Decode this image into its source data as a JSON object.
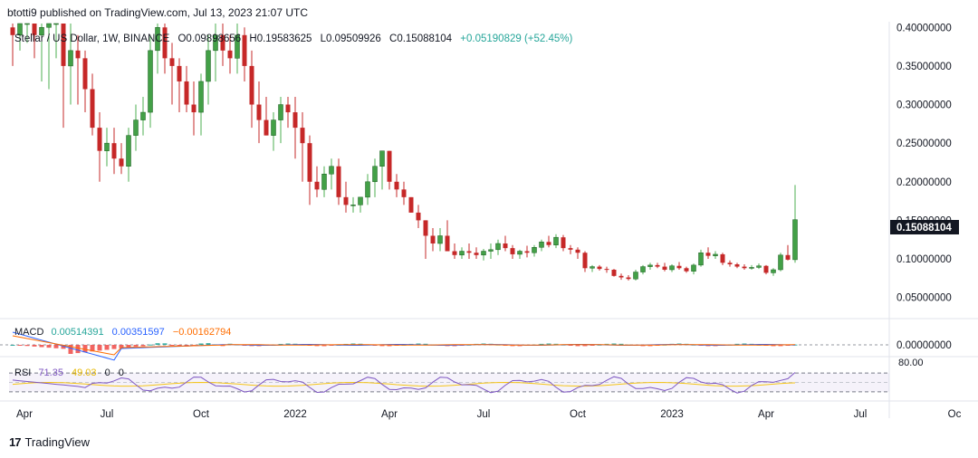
{
  "header": {
    "published": "btotti9 published on TradingView.com, Jul 13, 2023 21:07 UTC"
  },
  "legend": {
    "symbol": "Stellar / US Dollar, 1W, BINANCE",
    "o": "O0.09898656",
    "h": "H0.19583625",
    "l": "L0.09509926",
    "c": "C0.15088104",
    "change": "+0.05190829 (+52.45%)"
  },
  "macd_legend": {
    "label": "MACD",
    "v1": "0.00514391",
    "v2": "0.00351597",
    "v3": "−0.00162794"
  },
  "rsi_legend": {
    "label": "RSI",
    "v1": "71.35",
    "v2": "49.03",
    "v3": "0",
    "v4": "0"
  },
  "price_tag": "0.15088104",
  "footer": {
    "brand": "TradingView"
  },
  "colors": {
    "up": "#26a69a",
    "up_body": "#4caf50",
    "down": "#c62828",
    "macd": "#2962ff",
    "signal": "#ff6d00",
    "rsi": "#7e57c2",
    "rsi_ma": "#f5c518"
  },
  "chart_data": {
    "type": "candlestick",
    "timeframe": "1W",
    "y_axis": {
      "ticks": [
        0.05,
        0.1,
        0.15,
        0.2,
        0.25,
        0.3,
        0.35,
        0.4
      ],
      "tick_labels": [
        "0.05000000",
        "0.10000000",
        "0.15000000",
        "0.20000000",
        "0.25000000",
        "0.30000000",
        "0.35000000",
        "0.40000000"
      ],
      "ylim": [
        0.025,
        0.405
      ]
    },
    "x_axis": {
      "tick_labels": [
        "Apr",
        "Jul",
        "Oct",
        "2022",
        "Apr",
        "Jul",
        "Oct",
        "2023",
        "Apr",
        "Jul",
        "Oc"
      ],
      "tick_weeks": [
        0,
        13,
        26,
        39,
        52,
        65,
        78,
        91,
        104,
        117,
        130
      ]
    },
    "candles": [
      [
        0.4,
        0.42,
        0.35,
        0.39
      ],
      [
        0.39,
        0.44,
        0.37,
        0.42
      ],
      [
        0.42,
        0.46,
        0.38,
        0.44
      ],
      [
        0.44,
        0.46,
        0.36,
        0.39
      ],
      [
        0.39,
        0.42,
        0.33,
        0.4
      ],
      [
        0.4,
        0.42,
        0.32,
        0.41
      ],
      [
        0.41,
        0.44,
        0.36,
        0.42
      ],
      [
        0.42,
        0.45,
        0.27,
        0.35
      ],
      [
        0.35,
        0.42,
        0.3,
        0.37
      ],
      [
        0.37,
        0.39,
        0.3,
        0.36
      ],
      [
        0.36,
        0.37,
        0.29,
        0.32
      ],
      [
        0.32,
        0.34,
        0.26,
        0.27
      ],
      [
        0.27,
        0.29,
        0.2,
        0.24
      ],
      [
        0.24,
        0.27,
        0.22,
        0.25
      ],
      [
        0.25,
        0.27,
        0.21,
        0.23
      ],
      [
        0.23,
        0.25,
        0.21,
        0.22
      ],
      [
        0.22,
        0.27,
        0.2,
        0.26
      ],
      [
        0.26,
        0.3,
        0.24,
        0.28
      ],
      [
        0.28,
        0.31,
        0.26,
        0.29
      ],
      [
        0.29,
        0.39,
        0.27,
        0.37
      ],
      [
        0.37,
        0.41,
        0.34,
        0.4
      ],
      [
        0.4,
        0.42,
        0.34,
        0.36
      ],
      [
        0.36,
        0.38,
        0.3,
        0.35
      ],
      [
        0.35,
        0.36,
        0.29,
        0.33
      ],
      [
        0.33,
        0.35,
        0.29,
        0.3
      ],
      [
        0.3,
        0.33,
        0.26,
        0.29
      ],
      [
        0.29,
        0.34,
        0.26,
        0.33
      ],
      [
        0.33,
        0.39,
        0.3,
        0.37
      ],
      [
        0.37,
        0.41,
        0.33,
        0.39
      ],
      [
        0.39,
        0.42,
        0.35,
        0.37
      ],
      [
        0.37,
        0.39,
        0.34,
        0.36
      ],
      [
        0.36,
        0.41,
        0.34,
        0.39
      ],
      [
        0.39,
        0.4,
        0.33,
        0.35
      ],
      [
        0.35,
        0.37,
        0.27,
        0.3
      ],
      [
        0.3,
        0.33,
        0.25,
        0.28
      ],
      [
        0.28,
        0.31,
        0.26,
        0.26
      ],
      [
        0.26,
        0.29,
        0.24,
        0.28
      ],
      [
        0.28,
        0.31,
        0.25,
        0.3
      ],
      [
        0.3,
        0.31,
        0.27,
        0.29
      ],
      [
        0.29,
        0.31,
        0.23,
        0.27
      ],
      [
        0.27,
        0.29,
        0.2,
        0.25
      ],
      [
        0.25,
        0.26,
        0.17,
        0.2
      ],
      [
        0.2,
        0.22,
        0.18,
        0.19
      ],
      [
        0.19,
        0.22,
        0.18,
        0.21
      ],
      [
        0.21,
        0.23,
        0.19,
        0.22
      ],
      [
        0.22,
        0.23,
        0.17,
        0.18
      ],
      [
        0.18,
        0.2,
        0.16,
        0.17
      ],
      [
        0.17,
        0.18,
        0.16,
        0.17
      ],
      [
        0.17,
        0.18,
        0.16,
        0.18
      ],
      [
        0.18,
        0.21,
        0.17,
        0.2
      ],
      [
        0.2,
        0.23,
        0.18,
        0.22
      ],
      [
        0.22,
        0.24,
        0.19,
        0.24
      ],
      [
        0.24,
        0.24,
        0.19,
        0.2
      ],
      [
        0.2,
        0.21,
        0.18,
        0.19
      ],
      [
        0.19,
        0.2,
        0.17,
        0.18
      ],
      [
        0.18,
        0.18,
        0.16,
        0.16
      ],
      [
        0.16,
        0.17,
        0.14,
        0.15
      ],
      [
        0.15,
        0.15,
        0.1,
        0.13
      ],
      [
        0.13,
        0.14,
        0.11,
        0.12
      ],
      [
        0.12,
        0.14,
        0.11,
        0.13
      ],
      [
        0.13,
        0.15,
        0.11,
        0.11
      ],
      [
        0.11,
        0.12,
        0.1,
        0.105
      ],
      [
        0.105,
        0.115,
        0.1,
        0.11
      ],
      [
        0.11,
        0.12,
        0.1,
        0.108
      ],
      [
        0.108,
        0.115,
        0.1,
        0.105
      ],
      [
        0.105,
        0.113,
        0.098,
        0.11
      ],
      [
        0.11,
        0.12,
        0.1,
        0.112
      ],
      [
        0.112,
        0.125,
        0.105,
        0.12
      ],
      [
        0.12,
        0.13,
        0.11,
        0.114
      ],
      [
        0.114,
        0.118,
        0.1,
        0.106
      ],
      [
        0.106,
        0.112,
        0.1,
        0.11
      ],
      [
        0.11,
        0.117,
        0.102,
        0.108
      ],
      [
        0.108,
        0.118,
        0.103,
        0.115
      ],
      [
        0.115,
        0.125,
        0.11,
        0.122
      ],
      [
        0.122,
        0.13,
        0.115,
        0.118
      ],
      [
        0.118,
        0.132,
        0.114,
        0.128
      ],
      [
        0.128,
        0.131,
        0.11,
        0.114
      ],
      [
        0.114,
        0.118,
        0.106,
        0.112
      ],
      [
        0.112,
        0.115,
        0.1,
        0.108
      ],
      [
        0.108,
        0.11,
        0.083,
        0.088
      ],
      [
        0.088,
        0.092,
        0.083,
        0.09
      ],
      [
        0.09,
        0.092,
        0.085,
        0.087
      ],
      [
        0.087,
        0.09,
        0.082,
        0.086
      ],
      [
        0.086,
        0.087,
        0.077,
        0.078
      ],
      [
        0.078,
        0.081,
        0.073,
        0.076
      ],
      [
        0.076,
        0.079,
        0.072,
        0.074
      ],
      [
        0.074,
        0.086,
        0.072,
        0.083
      ],
      [
        0.083,
        0.092,
        0.08,
        0.09
      ],
      [
        0.09,
        0.095,
        0.086,
        0.092
      ],
      [
        0.092,
        0.095,
        0.088,
        0.09
      ],
      [
        0.09,
        0.095,
        0.084,
        0.086
      ],
      [
        0.086,
        0.093,
        0.083,
        0.091
      ],
      [
        0.091,
        0.096,
        0.086,
        0.088
      ],
      [
        0.088,
        0.09,
        0.082,
        0.084
      ],
      [
        0.084,
        0.094,
        0.08,
        0.092
      ],
      [
        0.092,
        0.112,
        0.09,
        0.108
      ],
      [
        0.108,
        0.115,
        0.1,
        0.104
      ],
      [
        0.104,
        0.11,
        0.1,
        0.106
      ],
      [
        0.106,
        0.108,
        0.092,
        0.095
      ],
      [
        0.095,
        0.098,
        0.09,
        0.093
      ],
      [
        0.093,
        0.095,
        0.088,
        0.09
      ],
      [
        0.09,
        0.093,
        0.086,
        0.088
      ],
      [
        0.088,
        0.092,
        0.086,
        0.089
      ],
      [
        0.089,
        0.094,
        0.087,
        0.091
      ],
      [
        0.091,
        0.092,
        0.08,
        0.082
      ],
      [
        0.082,
        0.088,
        0.078,
        0.086
      ],
      [
        0.086,
        0.108,
        0.084,
        0.105
      ],
      [
        0.105,
        0.118,
        0.098,
        0.099
      ],
      [
        0.09899,
        0.19584,
        0.0951,
        0.15088
      ]
    ],
    "macd": {
      "histogram_note": "negative early, near zero later",
      "last": [
        0.00514391,
        0.00351597,
        -0.00162794
      ]
    },
    "rsi": {
      "levels": [
        70,
        30
      ],
      "upper_label": "80.00",
      "last": 71.35
    }
  }
}
